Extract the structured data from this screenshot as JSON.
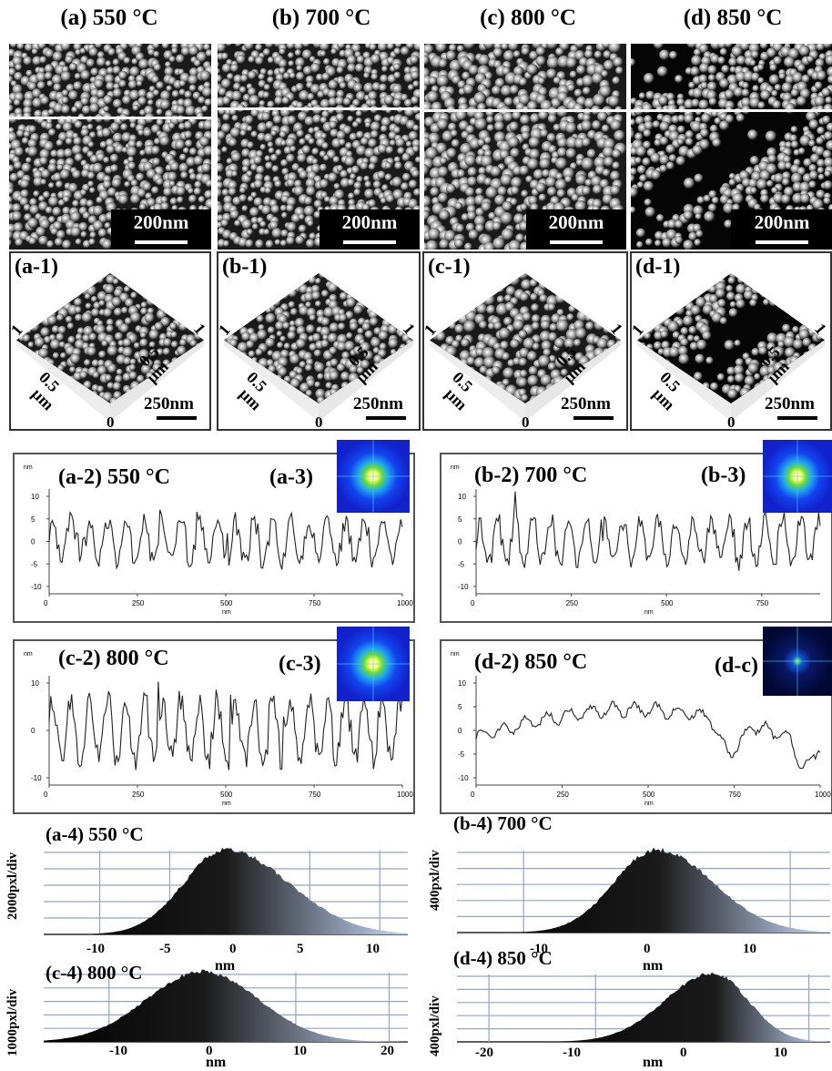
{
  "columns": [
    {
      "title": "(a) 550 °C",
      "scale": "200nm",
      "label3d": "(a-1)"
    },
    {
      "title": "(b) 700 °C",
      "scale": "200nm",
      "label3d": "(b-1)"
    },
    {
      "title": "(c) 800 °C",
      "scale": "200nm",
      "label3d": "(c-1)"
    },
    {
      "title": "(d) 850 °C",
      "scale": "200nm",
      "label3d": "(d-1)"
    }
  ],
  "axis3d": {
    "one": "1",
    "zero": "0",
    "half": "0.5",
    "um": "µm",
    "scale": "250nm"
  },
  "profiles": [
    {
      "label": "(a-2) 550 °C",
      "inset": "(a-3)",
      "unit": "nm",
      "xunit": "nm",
      "yticks": [
        "10",
        "5",
        "0",
        "-5",
        "-10"
      ],
      "xticks": [
        "0",
        "250",
        "500",
        "750",
        "1000"
      ]
    },
    {
      "label": "(b-2) 700 °C",
      "inset": "(b-3)",
      "unit": "nm",
      "xunit": "nm",
      "yticks": [
        "10",
        "5",
        "0",
        "-5",
        "-10"
      ],
      "xticks": [
        "0",
        "250",
        "500",
        "750"
      ]
    },
    {
      "label": "(c-2) 800 °C",
      "inset": "(c-3)",
      "unit": "nm",
      "xunit": "nm",
      "yticks": [
        "10",
        "0",
        "-10"
      ],
      "xticks": [
        "0",
        "250",
        "500",
        "750",
        "1000"
      ]
    },
    {
      "label": "(d-2) 850 °C",
      "inset": "(d-c)",
      "unit": "nm",
      "xunit": "nm",
      "yticks": [
        "10",
        "5",
        "0",
        "-5",
        "-10"
      ],
      "xticks": [
        "0",
        "250",
        "500",
        "750",
        "1000"
      ]
    }
  ],
  "histograms": [
    {
      "label": "(a-4) 550 °C",
      "ylabel": "2000pxl/div",
      "xlabel": "nm",
      "xticks": [
        "-10",
        "-5",
        "0",
        "5",
        "10"
      ]
    },
    {
      "label": "(b-4) 700 °C",
      "ylabel": "400pxl/div",
      "xlabel": "nm",
      "xticks": [
        "-10",
        "0",
        "10"
      ]
    },
    {
      "label": "(c-4) 800 °C",
      "ylabel": "1000pxl/div",
      "xlabel": "nm",
      "xticks": [
        "-10",
        "0",
        "10",
        "20"
      ]
    },
    {
      "label": "(d-4) 850 °C",
      "ylabel": "400pxl/div",
      "xlabel": "nm",
      "xticks": [
        "-20",
        "-10",
        "0",
        "10"
      ]
    }
  ]
}
